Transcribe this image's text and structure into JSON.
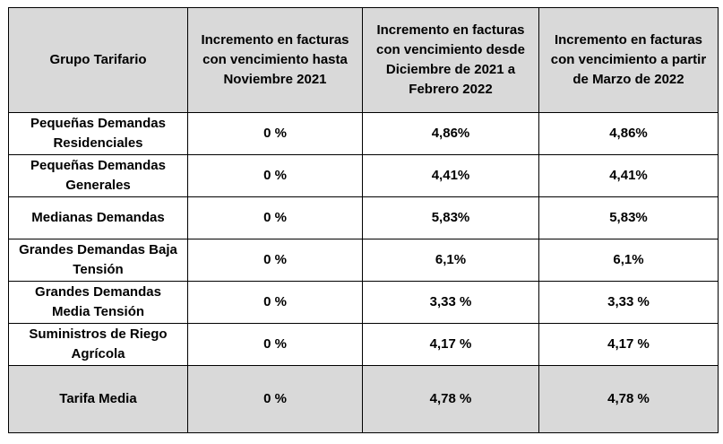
{
  "table": {
    "headers": [
      "Grupo Tarifario",
      "Incremento en facturas con vencimiento hasta Noviembre 2021",
      "Incremento en facturas con vencimiento desde Diciembre de 2021 a Febrero 2022",
      "Incremento en facturas con vencimiento a partir de Marzo de 2022"
    ],
    "rows": [
      [
        "Pequeñas Demandas Residenciales",
        "0 %",
        "4,86%",
        "4,86%"
      ],
      [
        "Pequeñas Demandas Generales",
        "0 %",
        "4,41%",
        "4,41%"
      ],
      [
        "Medianas Demandas",
        "0 %",
        "5,83%",
        "5,83%"
      ],
      [
        "Grandes Demandas Baja Tensión",
        "0 %",
        "6,1%",
        "6,1%"
      ],
      [
        "Grandes Demandas Media Tensión",
        "0 %",
        "3,33 %",
        "3,33 %"
      ],
      [
        "Suministros de Riego Agrícola",
        "0 %",
        "4,17 %",
        "4,17 %"
      ]
    ],
    "total": [
      "Tarifa Media",
      "0 %",
      "4,78 %",
      "4,78 %"
    ],
    "header_bg": "#d9d9d9",
    "border_color": "#000000"
  }
}
